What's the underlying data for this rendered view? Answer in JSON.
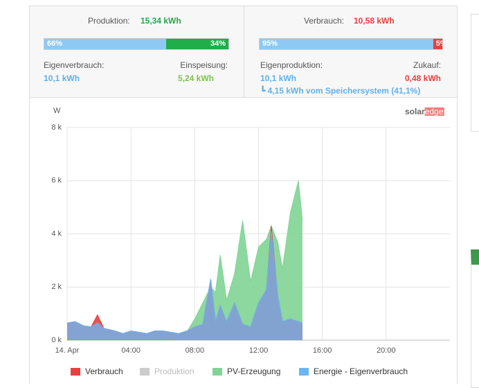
{
  "summary": {
    "production": {
      "label": "Produktion:",
      "value": "15,34 kWh",
      "bar": {
        "values": [
          66,
          34
        ],
        "value_labels": [
          "66%",
          "34%"
        ]
      },
      "left_label": "Eigenverbrauch:",
      "left_value": "10,1 kWh",
      "right_label": "Einspeisung:",
      "right_value": "5,24 kWh"
    },
    "consumption": {
      "label": "Verbrauch:",
      "value": "10,58 kWh",
      "bar": {
        "values": [
          95,
          5
        ],
        "value_labels": [
          "95%",
          "5%"
        ]
      },
      "left_label": "Eigenproduktion:",
      "left_value": "10,1 kWh",
      "right_label": "Zukauf:",
      "right_value": "0,48 kWh",
      "note": "4,15 kWh vom Speichersystem (41,1%)"
    }
  },
  "logo": {
    "left": "solar",
    "right": "edge"
  },
  "chart_data": {
    "type": "area",
    "y_axis_label": "W",
    "x": [
      0,
      0.5,
      1,
      1.5,
      1.9,
      2.3,
      3,
      3.5,
      4,
      4.5,
      5,
      5.5,
      6,
      6.5,
      7,
      7.5,
      8,
      8.5,
      9,
      9.3,
      9.6,
      10,
      10.5,
      11,
      11.5,
      12,
      12.5,
      12.8,
      13.2,
      13.5,
      14,
      14.5,
      14.75
    ],
    "xlim": [
      0,
      24
    ],
    "xticks": [
      {
        "value": 0,
        "label": "14. Apr"
      },
      {
        "value": 4,
        "label": "04:00"
      },
      {
        "value": 8,
        "label": "08:00"
      },
      {
        "value": 12,
        "label": "12:00"
      },
      {
        "value": 16,
        "label": "16:00"
      },
      {
        "value": 20,
        "label": "20:00"
      }
    ],
    "ylim": [
      0,
      8000
    ],
    "yticks": [
      {
        "value": 0,
        "label": "0 k"
      },
      {
        "value": 2000,
        "label": "2 k"
      },
      {
        "value": 4000,
        "label": "4 k"
      },
      {
        "value": 6000,
        "label": "6 k"
      },
      {
        "value": 8000,
        "label": "8 k"
      }
    ],
    "grid": true,
    "series": [
      {
        "name": "Verbrauch",
        "color": "#e8403f",
        "visible": true,
        "values": [
          650,
          700,
          550,
          500,
          950,
          450,
          350,
          250,
          350,
          300,
          250,
          350,
          350,
          300,
          250,
          350,
          500,
          600,
          2300,
          700,
          1300,
          700,
          1400,
          600,
          500,
          1400,
          1900,
          4300,
          1700,
          700,
          800,
          700,
          650
        ]
      },
      {
        "name": "Produktion",
        "color": "#cccccc",
        "visible": false
      },
      {
        "name": "PV-Erzeugung",
        "color": "#7fd495",
        "visible": true,
        "values": [
          0,
          0,
          0,
          0,
          0,
          0,
          0,
          0,
          0,
          0,
          0,
          0,
          0,
          0,
          50,
          300,
          800,
          1400,
          2000,
          1800,
          3200,
          1500,
          2500,
          4500,
          2200,
          3500,
          3800,
          4300,
          3700,
          2700,
          4800,
          6000,
          4500
        ]
      },
      {
        "name": "Energie - Eigenverbrauch",
        "color": "#6ab6f2",
        "visible": true,
        "values": [
          650,
          700,
          550,
          500,
          650,
          450,
          350,
          250,
          350,
          300,
          250,
          350,
          350,
          300,
          250,
          350,
          500,
          600,
          2300,
          700,
          1300,
          700,
          1400,
          600,
          500,
          1400,
          1900,
          4100,
          1700,
          700,
          800,
          700,
          650
        ]
      }
    ]
  }
}
